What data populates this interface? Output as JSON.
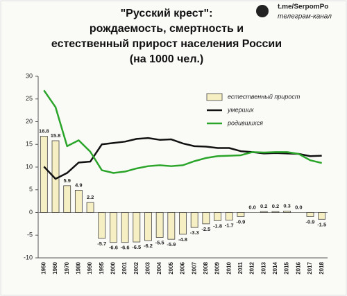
{
  "chart_data": {
    "type": "bar",
    "title": [
      "\"Русский крест\":",
      "рождаемость, смертность и",
      "естественный прирост населения России",
      "(на 1000 чел.)"
    ],
    "categories": [
      "1950",
      "1960",
      "1970",
      "1980",
      "1990",
      "1995",
      "2000",
      "2001",
      "2002",
      "2003",
      "2004",
      "2005",
      "2006",
      "2007",
      "2008",
      "2009",
      "2010",
      "2011",
      "2012",
      "2013",
      "2014",
      "2015",
      "2016",
      "2017",
      "2018"
    ],
    "series": [
      {
        "name": "естественный прирост",
        "type": "bar",
        "color": "#f6efc4",
        "values": [
          16.8,
          15.8,
          5.9,
          4.9,
          2.2,
          -5.7,
          -6.6,
          -6.6,
          -6.5,
          -6.2,
          -5.5,
          -5.9,
          -4.8,
          -3.3,
          -2.5,
          -1.8,
          -1.7,
          -0.9,
          0.0,
          0.2,
          0.2,
          0.3,
          0.0,
          -0.9,
          -1.5
        ],
        "value_labels": [
          "16.8",
          "15.8",
          "5.9",
          "4.9",
          "2.2",
          "-5.7",
          "-6.6",
          "-6.6",
          "-6.5",
          "-6.2",
          "-5.5",
          "-5.9",
          "-4.8",
          "-3.3",
          "-2.5",
          "-1.8",
          "-1.7",
          "-0.9",
          "0.0",
          "0.2",
          "0.2",
          "0.3",
          "0.0",
          "-0.9",
          "-1.5"
        ]
      },
      {
        "name": "умерших",
        "type": "line",
        "color": "#111111",
        "values": [
          10.1,
          7.4,
          8.7,
          11.0,
          11.2,
          15.0,
          15.3,
          15.6,
          16.2,
          16.4,
          16.0,
          16.1,
          15.2,
          14.6,
          14.5,
          14.2,
          14.2,
          13.5,
          13.3,
          13.0,
          13.1,
          13.0,
          12.9,
          12.4,
          12.5
        ]
      },
      {
        "name": "родившихся",
        "type": "line",
        "color": "#2aa52a",
        "values": [
          26.9,
          23.2,
          14.6,
          15.9,
          13.4,
          9.3,
          8.7,
          9.0,
          9.7,
          10.2,
          10.4,
          10.2,
          10.4,
          11.3,
          12.0,
          12.4,
          12.5,
          12.6,
          13.3,
          13.2,
          13.3,
          13.3,
          12.9,
          11.5,
          10.9
        ]
      }
    ],
    "ylim": [
      -10,
      30
    ],
    "yticks": [
      -10,
      -5,
      0,
      5,
      10,
      15,
      20,
      25,
      30
    ],
    "grid": false
  },
  "watermark": {
    "site": "t.me/SerpomPo",
    "caption": "телеграм-канал"
  }
}
